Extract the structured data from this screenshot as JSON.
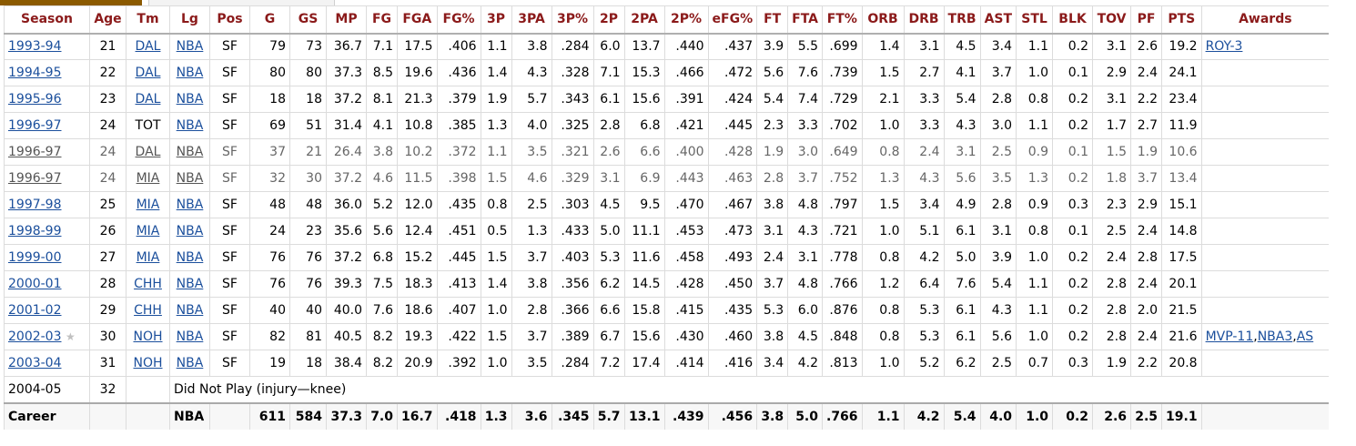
{
  "headers": [
    "Season",
    "Age",
    "Tm",
    "Lg",
    "Pos",
    "G",
    "GS",
    "MP",
    "FG",
    "FGA",
    "FG%",
    "3P",
    "3PA",
    "3P%",
    "2P",
    "2PA",
    "2P%",
    "eFG%",
    "FT",
    "FTA",
    "FT%",
    "ORB",
    "DRB",
    "TRB",
    "AST",
    "STL",
    "BLK",
    "TOV",
    "PF",
    "PTS",
    "Awards"
  ],
  "rows": [
    {
      "season": "1993-94",
      "star": "",
      "age": "21",
      "tm": "DAL",
      "tm_link": true,
      "lg": "NBA",
      "pos": "SF",
      "stats": [
        "79",
        "73",
        "36.7",
        "7.1",
        "17.5",
        ".406",
        "1.1",
        "3.8",
        ".284",
        "6.0",
        "13.7",
        ".440",
        ".437",
        "3.9",
        "5.5",
        ".699",
        "1.4",
        "3.1",
        "4.5",
        "3.4",
        "1.1",
        "0.2",
        "3.1",
        "2.6",
        "19.2"
      ],
      "awards": [
        "ROY-3"
      ],
      "partial": false
    },
    {
      "season": "1994-95",
      "star": "",
      "age": "22",
      "tm": "DAL",
      "tm_link": true,
      "lg": "NBA",
      "pos": "SF",
      "stats": [
        "80",
        "80",
        "37.3",
        "8.5",
        "19.6",
        ".436",
        "1.4",
        "4.3",
        ".328",
        "7.1",
        "15.3",
        ".466",
        ".472",
        "5.6",
        "7.6",
        ".739",
        "1.5",
        "2.7",
        "4.1",
        "3.7",
        "1.0",
        "0.1",
        "2.9",
        "2.4",
        "24.1"
      ],
      "awards": [],
      "partial": false
    },
    {
      "season": "1995-96",
      "star": "",
      "age": "23",
      "tm": "DAL",
      "tm_link": true,
      "lg": "NBA",
      "pos": "SF",
      "stats": [
        "18",
        "18",
        "37.2",
        "8.1",
        "21.3",
        ".379",
        "1.9",
        "5.7",
        ".343",
        "6.1",
        "15.6",
        ".391",
        ".424",
        "5.4",
        "7.4",
        ".729",
        "2.1",
        "3.3",
        "5.4",
        "2.8",
        "0.8",
        "0.2",
        "3.1",
        "2.2",
        "23.4"
      ],
      "awards": [],
      "partial": false
    },
    {
      "season": "1996-97",
      "star": "",
      "age": "24",
      "tm": "TOT",
      "tm_link": false,
      "lg": "NBA",
      "pos": "SF",
      "stats": [
        "69",
        "51",
        "31.4",
        "4.1",
        "10.8",
        ".385",
        "1.3",
        "4.0",
        ".325",
        "2.8",
        "6.8",
        ".421",
        ".445",
        "2.3",
        "3.3",
        ".702",
        "1.0",
        "3.3",
        "4.3",
        "3.0",
        "1.1",
        "0.2",
        "1.7",
        "2.7",
        "11.9"
      ],
      "awards": [],
      "partial": false
    },
    {
      "season": "1996-97",
      "star": "",
      "age": "24",
      "tm": "DAL",
      "tm_link": true,
      "lg": "NBA",
      "pos": "SF",
      "stats": [
        "37",
        "21",
        "26.4",
        "3.8",
        "10.2",
        ".372",
        "1.1",
        "3.5",
        ".321",
        "2.6",
        "6.6",
        ".400",
        ".428",
        "1.9",
        "3.0",
        ".649",
        "0.8",
        "2.4",
        "3.1",
        "2.5",
        "0.9",
        "0.1",
        "1.5",
        "1.9",
        "10.6"
      ],
      "awards": [],
      "partial": true
    },
    {
      "season": "1996-97",
      "star": "",
      "age": "24",
      "tm": "MIA",
      "tm_link": true,
      "lg": "NBA",
      "pos": "SF",
      "stats": [
        "32",
        "30",
        "37.2",
        "4.6",
        "11.5",
        ".398",
        "1.5",
        "4.6",
        ".329",
        "3.1",
        "6.9",
        ".443",
        ".463",
        "2.8",
        "3.7",
        ".752",
        "1.3",
        "4.3",
        "5.6",
        "3.5",
        "1.3",
        "0.2",
        "1.8",
        "3.7",
        "13.4"
      ],
      "awards": [],
      "partial": true
    },
    {
      "season": "1997-98",
      "star": "",
      "age": "25",
      "tm": "MIA",
      "tm_link": true,
      "lg": "NBA",
      "pos": "SF",
      "stats": [
        "48",
        "48",
        "36.0",
        "5.2",
        "12.0",
        ".435",
        "0.8",
        "2.5",
        ".303",
        "4.5",
        "9.5",
        ".470",
        ".467",
        "3.8",
        "4.8",
        ".797",
        "1.5",
        "3.4",
        "4.9",
        "2.8",
        "0.9",
        "0.3",
        "2.3",
        "2.9",
        "15.1"
      ],
      "awards": [],
      "partial": false
    },
    {
      "season": "1998-99",
      "star": "",
      "age": "26",
      "tm": "MIA",
      "tm_link": true,
      "lg": "NBA",
      "pos": "SF",
      "stats": [
        "24",
        "23",
        "35.6",
        "5.6",
        "12.4",
        ".451",
        "0.5",
        "1.3",
        ".433",
        "5.0",
        "11.1",
        ".453",
        ".473",
        "3.1",
        "4.3",
        ".721",
        "1.0",
        "5.1",
        "6.1",
        "3.1",
        "0.8",
        "0.1",
        "2.5",
        "2.4",
        "14.8"
      ],
      "awards": [],
      "partial": false
    },
    {
      "season": "1999-00",
      "star": "",
      "age": "27",
      "tm": "MIA",
      "tm_link": true,
      "lg": "NBA",
      "pos": "SF",
      "stats": [
        "76",
        "76",
        "37.2",
        "6.8",
        "15.2",
        ".445",
        "1.5",
        "3.7",
        ".403",
        "5.3",
        "11.6",
        ".458",
        ".493",
        "2.4",
        "3.1",
        ".778",
        "0.8",
        "4.2",
        "5.0",
        "3.9",
        "1.0",
        "0.2",
        "2.4",
        "2.8",
        "17.5"
      ],
      "awards": [],
      "partial": false
    },
    {
      "season": "2000-01",
      "star": "",
      "age": "28",
      "tm": "CHH",
      "tm_link": true,
      "lg": "NBA",
      "pos": "SF",
      "stats": [
        "76",
        "76",
        "39.3",
        "7.5",
        "18.3",
        ".413",
        "1.4",
        "3.8",
        ".356",
        "6.2",
        "14.5",
        ".428",
        ".450",
        "3.7",
        "4.8",
        ".766",
        "1.2",
        "6.4",
        "7.6",
        "5.4",
        "1.1",
        "0.2",
        "2.8",
        "2.4",
        "20.1"
      ],
      "awards": [],
      "partial": false
    },
    {
      "season": "2001-02",
      "star": "",
      "age": "29",
      "tm": "CHH",
      "tm_link": true,
      "lg": "NBA",
      "pos": "SF",
      "stats": [
        "40",
        "40",
        "40.0",
        "7.6",
        "18.6",
        ".407",
        "1.0",
        "2.8",
        ".366",
        "6.6",
        "15.8",
        ".415",
        ".435",
        "5.3",
        "6.0",
        ".876",
        "0.8",
        "5.3",
        "6.1",
        "4.3",
        "1.1",
        "0.2",
        "2.8",
        "2.0",
        "21.5"
      ],
      "awards": [],
      "partial": false
    },
    {
      "season": "2002-03",
      "star": "★",
      "age": "30",
      "tm": "NOH",
      "tm_link": true,
      "lg": "NBA",
      "pos": "SF",
      "stats": [
        "82",
        "81",
        "40.5",
        "8.2",
        "19.3",
        ".422",
        "1.5",
        "3.7",
        ".389",
        "6.7",
        "15.6",
        ".430",
        ".460",
        "3.8",
        "4.5",
        ".848",
        "0.8",
        "5.3",
        "6.1",
        "5.6",
        "1.0",
        "0.2",
        "2.8",
        "2.4",
        "21.6"
      ],
      "awards": [
        "MVP-11",
        "NBA3",
        "AS"
      ],
      "partial": false
    },
    {
      "season": "2003-04",
      "star": "",
      "age": "31",
      "tm": "NOH",
      "tm_link": true,
      "lg": "NBA",
      "pos": "SF",
      "stats": [
        "19",
        "18",
        "38.4",
        "8.2",
        "20.9",
        ".392",
        "1.0",
        "3.5",
        ".284",
        "7.2",
        "17.4",
        ".414",
        ".416",
        "3.4",
        "4.2",
        ".813",
        "1.0",
        "5.2",
        "6.2",
        "2.5",
        "0.7",
        "0.3",
        "1.9",
        "2.2",
        "20.8"
      ],
      "awards": [],
      "partial": false
    }
  ],
  "dnp_row": {
    "season": "2004-05",
    "age": "32",
    "note": "Did Not Play (injury—knee)"
  },
  "career": {
    "label": "Career",
    "lg": "NBA",
    "stats": [
      "611",
      "584",
      "37.3",
      "7.0",
      "16.7",
      ".418",
      "1.3",
      "3.6",
      ".345",
      "5.7",
      "13.1",
      ".439",
      ".456",
      "3.8",
      "5.0",
      ".766",
      "1.1",
      "4.2",
      "5.4",
      "4.0",
      "1.0",
      "0.2",
      "2.6",
      "2.5",
      "19.1"
    ]
  }
}
